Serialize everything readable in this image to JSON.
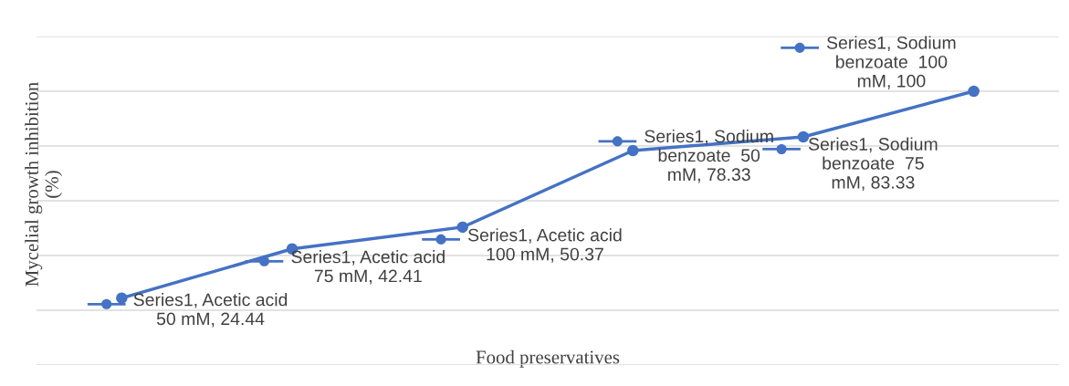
{
  "chart_data": {
    "type": "line",
    "xlabel": "Food preservatives",
    "ylabel": "Mycelial growth inhibition\n(%)",
    "categories": [
      null,
      null,
      null,
      null,
      null,
      null
    ],
    "series": [
      {
        "color": "#4472c4",
        "values": [
          24.44,
          42.41,
          50.37,
          78.33,
          83.33,
          100
        ],
        "value_labels": [
          "Series1, Acetic acid\n50 mM, 24.44",
          "Series1, Acetic acid\n75 mM, 42.41",
          "Series1, Acetic acid\n100 mM, 50.37",
          "Series1, Sodium\nbenzoate  50\nmM, 78.33",
          "Series1, Sodium\nbenzoate  75\nmM, 83.33",
          "Series1, Sodium\nbenzoate  100\nmM, 100"
        ]
      }
    ],
    "ylim": [
      0,
      120
    ],
    "yticks": [
      {
        "value": 0,
        "label": null
      },
      {
        "value": 20,
        "label": null
      },
      {
        "value": 40,
        "label": null
      },
      {
        "value": 60,
        "label": null
      },
      {
        "value": 80,
        "label": null
      },
      {
        "value": 100,
        "label": null
      },
      {
        "value": 120,
        "label": null
      }
    ],
    "grid": "y",
    "marker": "circle",
    "line_style": "solid"
  }
}
